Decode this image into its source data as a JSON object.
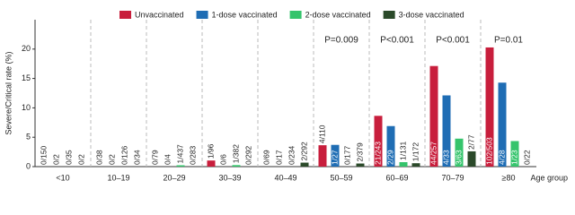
{
  "chart_data": {
    "type": "bar",
    "y_label": "Severe/Critical rate (%)",
    "x_label": "Age group",
    "categories": [
      "<10",
      "10–19",
      "20–29",
      "30–39",
      "40–49",
      "50–59",
      "60–69",
      "70–79",
      "≥80"
    ],
    "ylim": [
      0,
      25
    ],
    "yticks": [
      0,
      5,
      10,
      15,
      20
    ],
    "p_values": [
      null,
      null,
      null,
      null,
      null,
      "P=0.009",
      "P<0.001",
      "P<0.001",
      "P=0.01"
    ],
    "series": [
      {
        "name": "Unvaccinated",
        "color": "#c81e3c",
        "values": [
          0,
          0,
          0,
          1.04,
          0,
          3.64,
          8.64,
          17.12,
          20.28
        ],
        "value_labels": [
          "0/150",
          "0/38",
          "0/79",
          "1/96",
          "0/69",
          "4/110",
          "21/243",
          "44/257",
          "102/503"
        ]
      },
      {
        "name": "1-dose vaccinated",
        "color": "#1f6db4",
        "values": [
          0,
          0,
          0,
          0,
          0,
          3.7,
          6.9,
          12.12,
          14.29
        ],
        "value_labels": [
          "0/2",
          "0/2",
          "0/4",
          "0/6",
          "0/17",
          "1/27",
          "2/29",
          "4/33",
          "4/28"
        ]
      },
      {
        "name": "2-dose vaccinated",
        "color": "#35c46c",
        "values": [
          0,
          0,
          0.23,
          0.26,
          0,
          0,
          0.76,
          4.76,
          4.35
        ],
        "value_labels": [
          "0/35",
          "0/126",
          "1/437",
          "1/382",
          "0/234",
          "0/177",
          "1/131",
          "3/63",
          "1/23"
        ]
      },
      {
        "name": "3-dose vaccinated",
        "color": "#2b4a2a",
        "values": [
          0,
          0,
          0,
          0,
          0.68,
          0.53,
          0.58,
          2.6,
          0
        ],
        "value_labels": [
          "0/2",
          "0/34",
          "0/283",
          "0/292",
          "2/292",
          "2/379",
          "1/172",
          "2/77",
          "0/22"
        ]
      }
    ]
  }
}
